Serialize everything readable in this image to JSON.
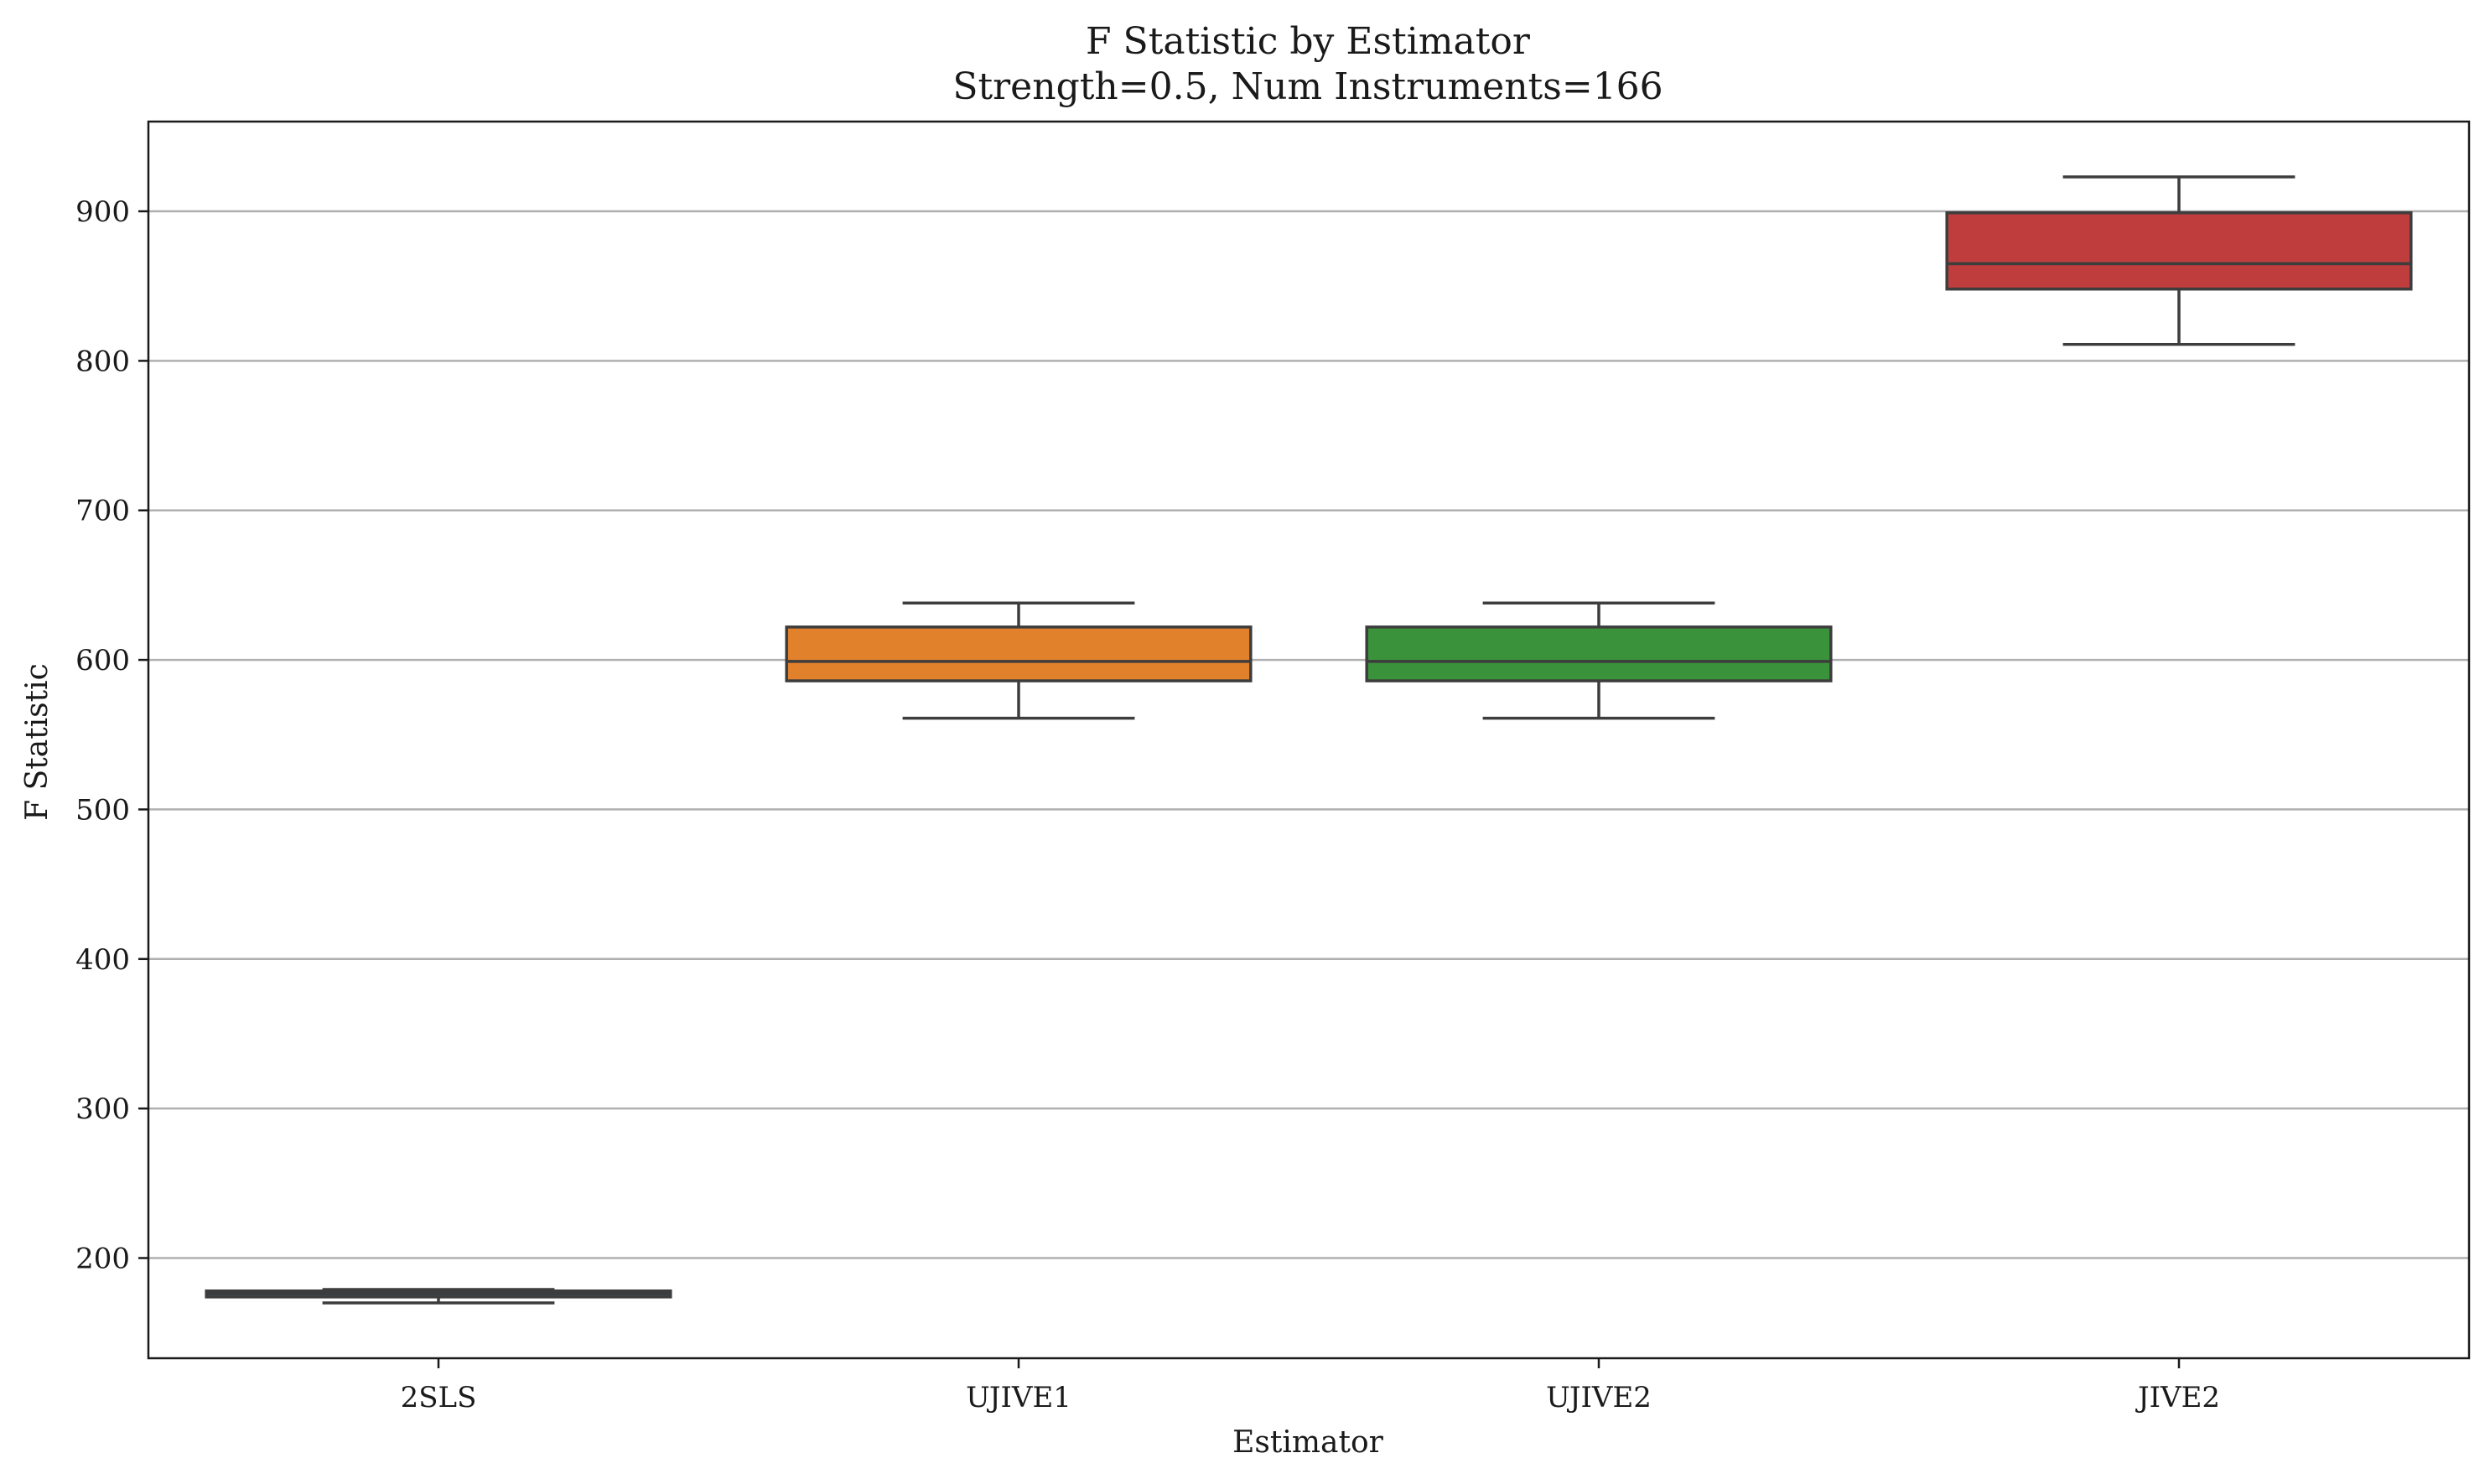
{
  "chart_data": {
    "type": "box",
    "title": "F Statistic by Estimator",
    "subtitle": "Strength=0.5, Num Instruments=166",
    "xlabel": "Estimator",
    "ylabel": "F Statistic",
    "ylim": [
      133,
      960
    ],
    "yticks": [
      200,
      300,
      400,
      500,
      600,
      700,
      800,
      900
    ],
    "grid": "horizontal",
    "categories": [
      "2SLS",
      "UJIVE1",
      "UJIVE2",
      "JIVE2"
    ],
    "boxes": [
      {
        "category": "2SLS",
        "whisker_low": 170,
        "q1": 174,
        "median": 176,
        "q3": 178,
        "whisker_high": 179,
        "color": "#3a75b0"
      },
      {
        "category": "UJIVE1",
        "whisker_low": 561,
        "q1": 586,
        "median": 599,
        "q3": 622,
        "whisker_high": 638,
        "color": "#e1812c"
      },
      {
        "category": "UJIVE2",
        "whisker_low": 561,
        "q1": 586,
        "median": 599,
        "q3": 622,
        "whisker_high": 638,
        "color": "#3a923a"
      },
      {
        "category": "JIVE2",
        "whisker_low": 811,
        "q1": 848,
        "median": 865,
        "q3": 899,
        "whisker_high": 923,
        "color": "#c03d3e"
      }
    ]
  }
}
